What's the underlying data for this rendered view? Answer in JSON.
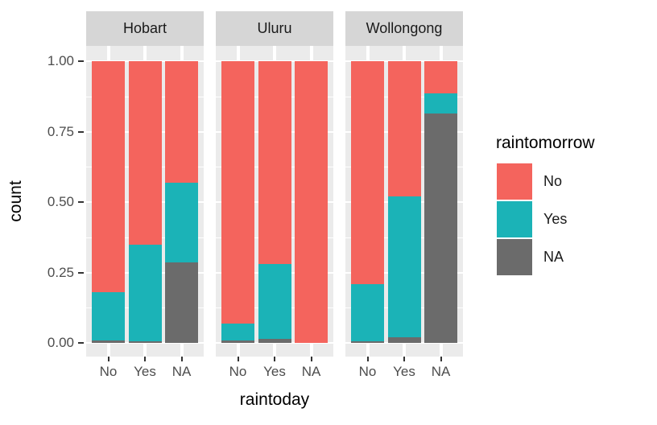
{
  "chart_data": {
    "type": "bar",
    "subtype": "stacked-proportion-faceted",
    "title": "",
    "xlabel": "raintoday",
    "ylabel": "count",
    "categories": [
      "No",
      "Yes",
      "NA"
    ],
    "stack_order_bottom_to_top": [
      "NA",
      "Yes",
      "No"
    ],
    "ylim": [
      0,
      1
    ],
    "y_tick_values": [
      1.0,
      0.75,
      0.5,
      0.25,
      0.0
    ],
    "y_tick_labels": [
      "1.00",
      "0.75",
      "0.50",
      "0.25",
      "0.00"
    ],
    "y_minor_tick_values": [
      0.875,
      0.625,
      0.375,
      0.125
    ],
    "grid": "white major and minor horizontal lines, white vertical lines at bar centers, on gray panels",
    "legend_position": "right",
    "facets": [
      {
        "label": "Hobart",
        "bars": [
          {
            "category": "No",
            "segments": {
              "No": 0.82,
              "Yes": 0.17,
              "NA": 0.01
            }
          },
          {
            "category": "Yes",
            "segments": {
              "No": 0.65,
              "Yes": 0.345,
              "NA": 0.005
            }
          },
          {
            "category": "NA",
            "segments": {
              "No": 0.43,
              "Yes": 0.285,
              "NA": 0.285
            }
          }
        ]
      },
      {
        "label": "Uluru",
        "bars": [
          {
            "category": "No",
            "segments": {
              "No": 0.93,
              "Yes": 0.06,
              "NA": 0.01
            }
          },
          {
            "category": "Yes",
            "segments": {
              "No": 0.72,
              "Yes": 0.265,
              "NA": 0.015
            }
          },
          {
            "category": "NA",
            "segments": {
              "No": 1.0,
              "Yes": 0.0,
              "NA": 0.0
            }
          }
        ]
      },
      {
        "label": "Wollongong",
        "bars": [
          {
            "category": "No",
            "segments": {
              "No": 0.79,
              "Yes": 0.205,
              "NA": 0.005
            }
          },
          {
            "category": "Yes",
            "segments": {
              "No": 0.48,
              "Yes": 0.5,
              "NA": 0.02
            }
          },
          {
            "category": "NA",
            "segments": {
              "No": 0.115,
              "Yes": 0.07,
              "NA": 0.815
            }
          }
        ]
      }
    ],
    "legend": {
      "title": "raintomorrow",
      "items": [
        {
          "label": "No",
          "color": "#F4645D"
        },
        {
          "label": "Yes",
          "color": "#1BB3B7"
        },
        {
          "label": "NA",
          "color": "#6B6B6B"
        }
      ]
    }
  },
  "colors": {
    "background": "#FFFFFF",
    "panel_background": "#EBEBEB",
    "strip_background": "#D6D6D6",
    "gridline": "#FFFFFF",
    "tick_mark": "#333333",
    "tick_label_text": "#4D4D4D",
    "axis_title_text": "#000000"
  }
}
